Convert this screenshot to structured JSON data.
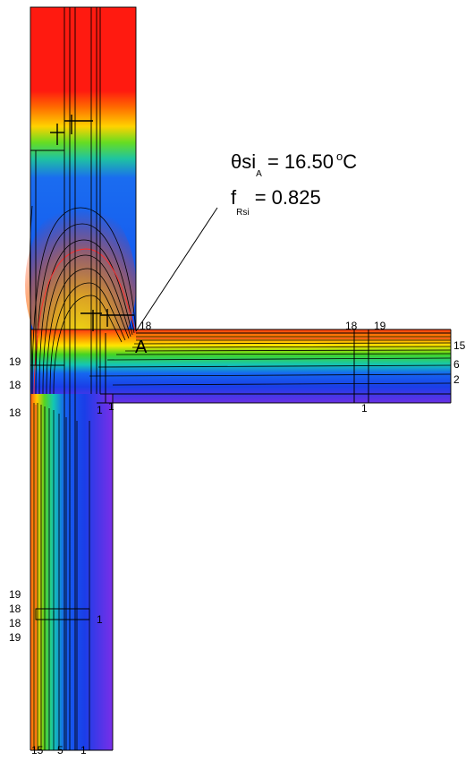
{
  "result": {
    "theta_symbol": "θ",
    "theta_sub1": "si",
    "theta_sub2": "A",
    "theta_value": "= 16.50",
    "theta_unit_sup": "o",
    "theta_unit": "C",
    "f_symbol": "f",
    "f_sub": "Rsi",
    "f_value": "= 0.825"
  },
  "point_label": "A",
  "labels": {
    "l18_top_a": "18",
    "l18_top_b": "18",
    "l19_top": "19",
    "l15_right": "15",
    "l6_right": "6",
    "l2_right": "2",
    "l19_left": "19",
    "l18_left_a": "18",
    "l18_left_b": "18",
    "l1_corner_a": "1",
    "l1_corner_b": "1",
    "l1_floor": "1",
    "l19_low_a": "19",
    "l18_low_a": "18",
    "l18_low_b": "18",
    "l19_low_b": "19",
    "l1_low": "1",
    "l15_bottom": "15",
    "l5_bottom": "5",
    "l1_bottom": "1"
  },
  "colors": {
    "warm": "#ff1a10",
    "orange": "#ff7a00",
    "yellow": "#ffee00",
    "green": "#22cc22",
    "cyan": "#12c9b8",
    "blue": "#1250f0",
    "violet": "#7a2ee8"
  }
}
